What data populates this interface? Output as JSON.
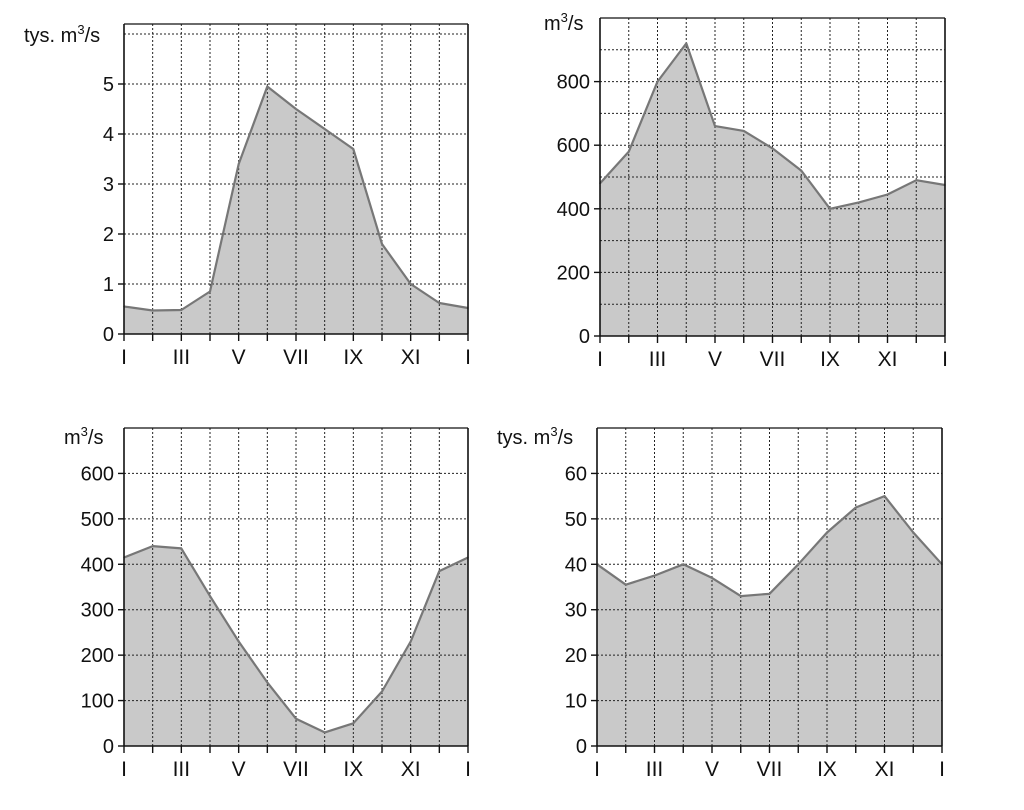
{
  "colors": {
    "fill": "#c9c9c9",
    "line": "#777777",
    "grid": "#222222",
    "axis": "#111111",
    "text": "#111111"
  },
  "chart_data": [
    {
      "type": "area",
      "ylabel": "tys. m³/s",
      "ylabel_main": "tys. m",
      "ylabel_sup": "3",
      "ylabel_tail": "/s",
      "ylim": [
        0,
        6.2
      ],
      "yticks": [
        0,
        1,
        2,
        3,
        4,
        5
      ],
      "ygrid": [
        0,
        1,
        2,
        3,
        4,
        5,
        6
      ],
      "x": [
        0,
        1,
        2,
        3,
        4,
        5,
        6,
        7,
        8,
        9,
        10,
        11,
        12
      ],
      "xtick_labels": [
        {
          "x": 0,
          "label": "I"
        },
        {
          "x": 2,
          "label": "III"
        },
        {
          "x": 4,
          "label": "V"
        },
        {
          "x": 6,
          "label": "VII"
        },
        {
          "x": 8,
          "label": "IX"
        },
        {
          "x": 10,
          "label": "XI"
        },
        {
          "x": 12,
          "label": "I"
        }
      ],
      "values": [
        0.55,
        0.47,
        0.48,
        0.85,
        3.4,
        4.95,
        4.5,
        4.1,
        3.7,
        1.8,
        1.0,
        0.62,
        0.52
      ]
    },
    {
      "type": "area",
      "ylabel": "m³/s",
      "ylabel_main": "m",
      "ylabel_sup": "3",
      "ylabel_tail": "/s",
      "ylim": [
        0,
        1000
      ],
      "yticks": [
        0,
        200,
        400,
        600,
        800
      ],
      "ygrid": [
        0,
        100,
        200,
        300,
        400,
        500,
        600,
        700,
        800,
        900,
        1000
      ],
      "x": [
        0,
        1,
        2,
        3,
        4,
        5,
        6,
        7,
        8,
        9,
        10,
        11,
        12
      ],
      "xtick_labels": [
        {
          "x": 0,
          "label": "I"
        },
        {
          "x": 2,
          "label": "III"
        },
        {
          "x": 4,
          "label": "V"
        },
        {
          "x": 6,
          "label": "VII"
        },
        {
          "x": 8,
          "label": "IX"
        },
        {
          "x": 10,
          "label": "XI"
        },
        {
          "x": 12,
          "label": "I"
        }
      ],
      "values": [
        480,
        580,
        800,
        920,
        660,
        645,
        590,
        520,
        400,
        420,
        445,
        490,
        475
      ]
    },
    {
      "type": "area",
      "ylabel": "m³/s",
      "ylabel_main": "m",
      "ylabel_sup": "3",
      "ylabel_tail": "/s",
      "ylim": [
        0,
        700
      ],
      "yticks": [
        0,
        100,
        200,
        300,
        400,
        500,
        600
      ],
      "ygrid": [
        0,
        100,
        200,
        300,
        400,
        500,
        600,
        700
      ],
      "x": [
        0,
        1,
        2,
        3,
        4,
        5,
        6,
        7,
        8,
        9,
        10,
        11,
        12
      ],
      "xtick_labels": [
        {
          "x": 0,
          "label": "I"
        },
        {
          "x": 2,
          "label": "III"
        },
        {
          "x": 4,
          "label": "V"
        },
        {
          "x": 6,
          "label": "VII"
        },
        {
          "x": 8,
          "label": "IX"
        },
        {
          "x": 10,
          "label": "XI"
        },
        {
          "x": 12,
          "label": "I"
        }
      ],
      "values": [
        415,
        440,
        435,
        330,
        230,
        140,
        60,
        30,
        50,
        120,
        230,
        385,
        415
      ]
    },
    {
      "type": "area",
      "ylabel": "tys. m³/s",
      "ylabel_main": "tys. m",
      "ylabel_sup": "3",
      "ylabel_tail": "/s",
      "ylim": [
        0,
        70
      ],
      "yticks": [
        0,
        10,
        20,
        30,
        40,
        50,
        60
      ],
      "ygrid": [
        0,
        10,
        20,
        30,
        40,
        50,
        60,
        70
      ],
      "x": [
        0,
        1,
        2,
        3,
        4,
        5,
        6,
        7,
        8,
        9,
        10,
        11,
        12
      ],
      "xtick_labels": [
        {
          "x": 0,
          "label": "I"
        },
        {
          "x": 2,
          "label": "III"
        },
        {
          "x": 4,
          "label": "V"
        },
        {
          "x": 6,
          "label": "VII"
        },
        {
          "x": 8,
          "label": "IX"
        },
        {
          "x": 10,
          "label": "XI"
        },
        {
          "x": 12,
          "label": "I"
        }
      ],
      "values": [
        40,
        35.5,
        37.5,
        40,
        37,
        33,
        33.5,
        40,
        47,
        52.5,
        55,
        47,
        40
      ]
    }
  ]
}
